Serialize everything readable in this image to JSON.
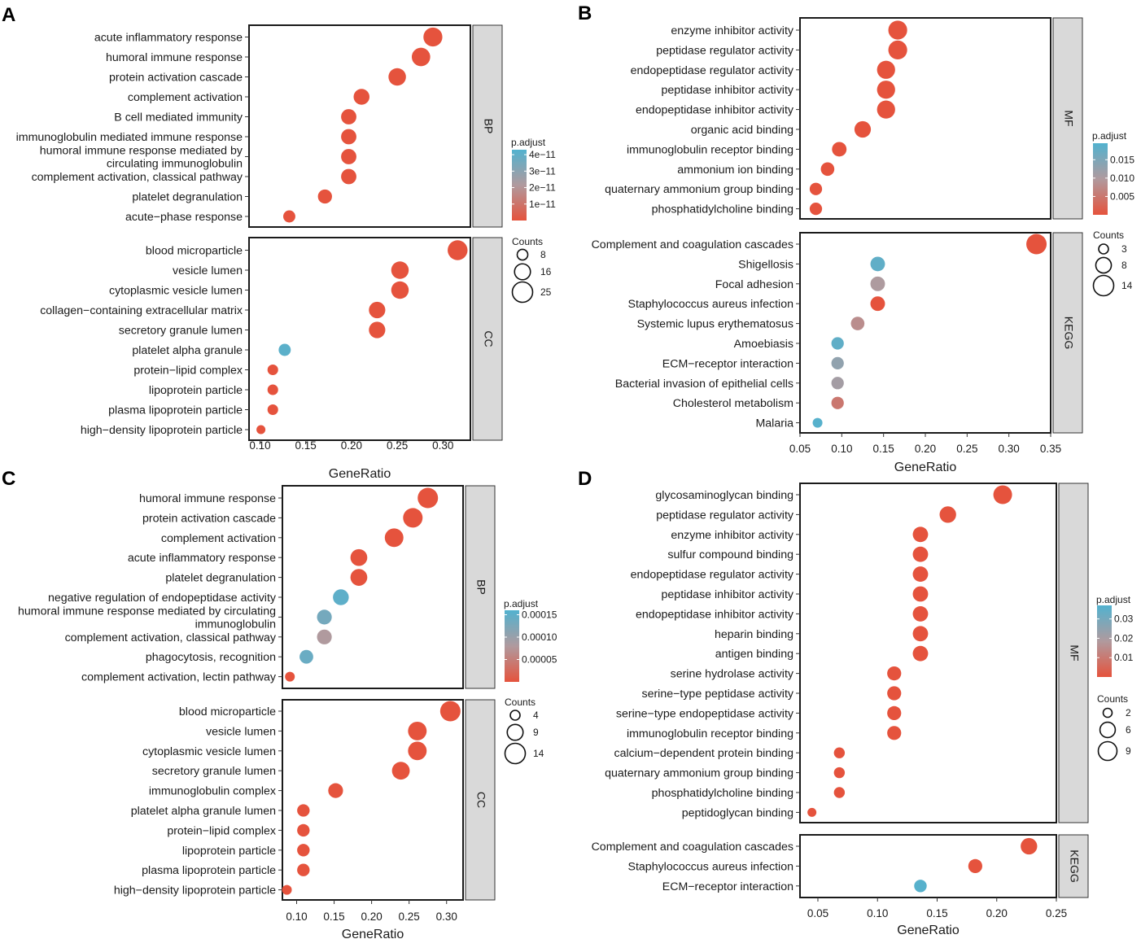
{
  "colors": {
    "high": "#e5533d",
    "low": "#52b2cf",
    "mid": "#b09a9e",
    "strip": "#d9d9d9",
    "frame": "#1a1a1a"
  },
  "chart_data": [
    {
      "panel": "A",
      "type": "scatter",
      "xlabel": "GeneRatio",
      "xticks": [
        0.1,
        0.15,
        0.2,
        0.25,
        0.3
      ],
      "xlim": [
        0.088,
        0.33
      ],
      "facets": [
        {
          "strip": "BP",
          "points": [
            {
              "term": "acute inflammatory response",
              "x": 0.289,
              "count": 22,
              "padj": 0.0
            },
            {
              "term": "humoral immune response",
              "x": 0.276,
              "count": 21,
              "padj": 0.0
            },
            {
              "term": "protein activation cascade",
              "x": 0.25,
              "count": 19,
              "padj": 0.0
            },
            {
              "term": "complement activation",
              "x": 0.211,
              "count": 16,
              "padj": 0.0
            },
            {
              "term": "B cell mediated immunity",
              "x": 0.197,
              "count": 15,
              "padj": 0.0
            },
            {
              "term": "immunoglobulin mediated immune response",
              "x": 0.197,
              "count": 15,
              "padj": 0.0
            },
            {
              "term": [
                "humoral immune response mediated by",
                "circulating immunoglobulin"
              ],
              "x": 0.197,
              "count": 15,
              "padj": 0.0
            },
            {
              "term": "complement activation, classical pathway",
              "x": 0.197,
              "count": 15,
              "padj": 0.0
            },
            {
              "term": "platelet degranulation",
              "x": 0.171,
              "count": 13,
              "padj": 0.0
            },
            {
              "term": "acute−phase response",
              "x": 0.132,
              "count": 10,
              "padj": 0.0
            }
          ]
        },
        {
          "strip": "CC",
          "points": [
            {
              "term": "blood microparticle",
              "x": 0.316,
              "count": 24,
              "padj": 0.0
            },
            {
              "term": "vesicle lumen",
              "x": 0.253,
              "count": 19,
              "padj": 0.0
            },
            {
              "term": "cytoplasmic vesicle lumen",
              "x": 0.253,
              "count": 19,
              "padj": 0.0
            },
            {
              "term": "collagen−containing extracellular matrix",
              "x": 0.228,
              "count": 17,
              "padj": 0.0
            },
            {
              "term": "secretory granule lumen",
              "x": 0.228,
              "count": 17,
              "padj": 0.0
            },
            {
              "term": "platelet alpha granule",
              "x": 0.127,
              "count": 10,
              "padj": 4.1e-11
            },
            {
              "term": "protein−lipid complex",
              "x": 0.114,
              "count": 8,
              "padj": 0.0
            },
            {
              "term": "lipoprotein particle",
              "x": 0.114,
              "count": 8,
              "padj": 0.0
            },
            {
              "term": "plasma lipoprotein particle",
              "x": 0.114,
              "count": 8,
              "padj": 0.0
            },
            {
              "term": "high−density lipoprotein particle",
              "x": 0.101,
              "count": 6,
              "padj": 0.0
            }
          ]
        }
      ],
      "legend": {
        "color_title": "p.adjust",
        "color_ticks": [
          {
            "v": 4e-11,
            "label": "4e−11"
          },
          {
            "v": 3e-11,
            "label": "3e−11"
          },
          {
            "v": 2e-11,
            "label": "2e−11"
          },
          {
            "v": 1e-11,
            "label": "1e−11"
          }
        ],
        "color_range": [
          0,
          4.3e-11
        ],
        "size_title": "Counts",
        "size_breaks": [
          8,
          16,
          25
        ],
        "size_domain": [
          6,
          25
        ]
      }
    },
    {
      "panel": "B",
      "type": "scatter",
      "xlabel": "GeneRatio",
      "xticks": [
        0.05,
        0.1,
        0.15,
        0.2,
        0.25,
        0.3,
        0.35
      ],
      "xlim": [
        0.05,
        0.35
      ],
      "facets": [
        {
          "strip": "MF",
          "points": [
            {
              "term": "enzyme inhibitor activity",
              "x": 0.167,
              "count": 12,
              "padj": 0.0
            },
            {
              "term": "peptidase regulator activity",
              "x": 0.167,
              "count": 12,
              "padj": 0.0
            },
            {
              "term": "endopeptidase regulator activity",
              "x": 0.153,
              "count": 11,
              "padj": 0.0
            },
            {
              "term": "peptidase inhibitor activity",
              "x": 0.153,
              "count": 11,
              "padj": 0.0
            },
            {
              "term": "endopeptidase inhibitor activity",
              "x": 0.153,
              "count": 11,
              "padj": 0.0
            },
            {
              "term": "organic acid binding",
              "x": 0.125,
              "count": 9,
              "padj": 0.0
            },
            {
              "term": "immunoglobulin receptor binding",
              "x": 0.097,
              "count": 7,
              "padj": 0.0
            },
            {
              "term": "ammonium ion binding",
              "x": 0.083,
              "count": 6,
              "padj": 0.0
            },
            {
              "term": "quaternary ammonium group binding",
              "x": 0.069,
              "count": 5,
              "padj": 0.0
            },
            {
              "term": "phosphatidylcholine binding",
              "x": 0.069,
              "count": 5,
              "padj": 0.0
            }
          ]
        },
        {
          "strip": "KEGG",
          "points": [
            {
              "term": "Complement and coagulation cascades",
              "x": 0.333,
              "count": 14,
              "padj": 0.0
            },
            {
              "term": "Shigellosis",
              "x": 0.143,
              "count": 7,
              "padj": 0.018
            },
            {
              "term": "Focal adhesion",
              "x": 0.143,
              "count": 7,
              "padj": 0.01
            },
            {
              "term": "Staphylococcus aureus infection",
              "x": 0.143,
              "count": 7,
              "padj": 0.0
            },
            {
              "term": "Systemic lupus erythematosus",
              "x": 0.119,
              "count": 6,
              "padj": 0.008
            },
            {
              "term": "Amoebiasis",
              "x": 0.095,
              "count": 5,
              "padj": 0.018
            },
            {
              "term": "ECM−receptor interaction",
              "x": 0.095,
              "count": 5,
              "padj": 0.013
            },
            {
              "term": "Bacterial invasion of epithelial cells",
              "x": 0.095,
              "count": 5,
              "padj": 0.011
            },
            {
              "term": "Cholesterol metabolism",
              "x": 0.095,
              "count": 5,
              "padj": 0.005
            },
            {
              "term": "Malaria",
              "x": 0.071,
              "count": 3,
              "padj": 0.019
            }
          ]
        }
      ],
      "legend": {
        "color_title": "p.adjust",
        "color_ticks": [
          {
            "v": 0.015,
            "label": "0.015"
          },
          {
            "v": 0.01,
            "label": "0.010"
          },
          {
            "v": 0.005,
            "label": "0.005"
          }
        ],
        "color_range": [
          0,
          0.0195
        ],
        "size_title": "Counts",
        "size_breaks": [
          3,
          8,
          14
        ],
        "size_domain": [
          3,
          14
        ]
      }
    },
    {
      "panel": "C",
      "type": "scatter",
      "xlabel": "GeneRatio",
      "xticks": [
        0.1,
        0.15,
        0.2,
        0.25,
        0.3
      ],
      "xlim": [
        0.081,
        0.322
      ],
      "facets": [
        {
          "strip": "BP",
          "points": [
            {
              "term": "humoral immune response",
              "x": 0.275,
              "count": 14,
              "padj": 0.0
            },
            {
              "term": "protein activation cascade",
              "x": 0.255,
              "count": 13,
              "padj": 0.0
            },
            {
              "term": "complement activation",
              "x": 0.23,
              "count": 12,
              "padj": 0.0
            },
            {
              "term": "acute inflammatory response",
              "x": 0.183,
              "count": 10,
              "padj": 0.0
            },
            {
              "term": "platelet degranulation",
              "x": 0.183,
              "count": 10,
              "padj": 0.0
            },
            {
              "term": "negative regulation of endopeptidase activity",
              "x": 0.159,
              "count": 9,
              "padj": 0.00015
            },
            {
              "term": [
                "humoral immune response mediated by circulating",
                "immunoglobulin"
              ],
              "x": 0.137,
              "count": 8,
              "padj": 0.00013
            },
            {
              "term": "complement activation, classical pathway",
              "x": 0.137,
              "count": 8,
              "padj": 8e-05
            },
            {
              "term": "phagocytosis, recognition",
              "x": 0.113,
              "count": 7,
              "padj": 0.00014
            },
            {
              "term": "complement activation, lectin pathway",
              "x": 0.091,
              "count": 4,
              "padj": 0.0
            }
          ]
        },
        {
          "strip": "CC",
          "points": [
            {
              "term": "blood microparticle",
              "x": 0.305,
              "count": 14,
              "padj": 0.0
            },
            {
              "term": "vesicle lumen",
              "x": 0.261,
              "count": 12,
              "padj": 0.0
            },
            {
              "term": "cytoplasmic vesicle lumen",
              "x": 0.261,
              "count": 12,
              "padj": 0.0
            },
            {
              "term": "secretory granule lumen",
              "x": 0.239,
              "count": 11,
              "padj": 0.0
            },
            {
              "term": "immunoglobulin complex",
              "x": 0.152,
              "count": 8,
              "padj": 0.0
            },
            {
              "term": "platelet alpha granule lumen",
              "x": 0.109,
              "count": 6,
              "padj": 0.0
            },
            {
              "term": "protein−lipid complex",
              "x": 0.109,
              "count": 6,
              "padj": 0.0
            },
            {
              "term": "lipoprotein particle",
              "x": 0.109,
              "count": 6,
              "padj": 0.0
            },
            {
              "term": "plasma lipoprotein particle",
              "x": 0.109,
              "count": 6,
              "padj": 0.0
            },
            {
              "term": "high−density lipoprotein particle",
              "x": 0.087,
              "count": 4,
              "padj": 0.0
            }
          ]
        }
      ],
      "legend": {
        "color_title": "p.adjust",
        "color_ticks": [
          {
            "v": 0.00015,
            "label": "0.00015"
          },
          {
            "v": 0.0001,
            "label": "0.00010"
          },
          {
            "v": 5e-05,
            "label": "0.00005"
          }
        ],
        "color_range": [
          0,
          0.00016
        ],
        "size_title": "Counts",
        "size_breaks": [
          4,
          9,
          14
        ],
        "size_domain": [
          4,
          14
        ]
      }
    },
    {
      "panel": "D",
      "type": "scatter",
      "xlabel": "GeneRatio",
      "xticks": [
        0.05,
        0.1,
        0.15,
        0.2,
        0.25
      ],
      "xlim": [
        0.035,
        0.25
      ],
      "facets": [
        {
          "strip": "MF",
          "points": [
            {
              "term": "glycosaminoglycan binding",
              "x": 0.205,
              "count": 9,
              "padj": 0.0
            },
            {
              "term": "peptidase regulator activity",
              "x": 0.159,
              "count": 7,
              "padj": 0.0
            },
            {
              "term": "enzyme inhibitor activity",
              "x": 0.136,
              "count": 6,
              "padj": 0.0
            },
            {
              "term": "sulfur compound binding",
              "x": 0.136,
              "count": 6,
              "padj": 0.0
            },
            {
              "term": "endopeptidase regulator activity",
              "x": 0.136,
              "count": 6,
              "padj": 0.0
            },
            {
              "term": "peptidase inhibitor activity",
              "x": 0.136,
              "count": 6,
              "padj": 0.0
            },
            {
              "term": "endopeptidase inhibitor activity",
              "x": 0.136,
              "count": 6,
              "padj": 0.0
            },
            {
              "term": "heparin binding",
              "x": 0.136,
              "count": 6,
              "padj": 0.0
            },
            {
              "term": "antigen binding",
              "x": 0.136,
              "count": 6,
              "padj": 0.0
            },
            {
              "term": "serine hydrolase activity",
              "x": 0.114,
              "count": 5,
              "padj": 0.0
            },
            {
              "term": "serine−type peptidase activity",
              "x": 0.114,
              "count": 5,
              "padj": 0.0
            },
            {
              "term": "serine−type endopeptidase activity",
              "x": 0.114,
              "count": 5,
              "padj": 0.0
            },
            {
              "term": "immunoglobulin receptor binding",
              "x": 0.114,
              "count": 5,
              "padj": 0.0
            },
            {
              "term": "calcium−dependent protein binding",
              "x": 0.068,
              "count": 3,
              "padj": 0.0
            },
            {
              "term": "quaternary ammonium group binding",
              "x": 0.068,
              "count": 3,
              "padj": 0.0
            },
            {
              "term": "phosphatidylcholine binding",
              "x": 0.068,
              "count": 3,
              "padj": 0.0
            },
            {
              "term": "peptidoglycan binding",
              "x": 0.045,
              "count": 2,
              "padj": 0.0
            }
          ]
        },
        {
          "strip": "KEGG",
          "points": [
            {
              "term": "Complement and coagulation cascades",
              "x": 0.227,
              "count": 7,
              "padj": 0.0
            },
            {
              "term": "Staphylococcus aureus infection",
              "x": 0.182,
              "count": 5,
              "padj": 0.0
            },
            {
              "term": "ECM−receptor interaction",
              "x": 0.136,
              "count": 4,
              "padj": 0.036
            }
          ]
        }
      ],
      "legend": {
        "color_title": "p.adjust",
        "color_ticks": [
          {
            "v": 0.03,
            "label": "0.03"
          },
          {
            "v": 0.02,
            "label": "0.02"
          },
          {
            "v": 0.01,
            "label": "0.01"
          }
        ],
        "color_range": [
          0,
          0.037
        ],
        "size_title": "Counts",
        "size_breaks": [
          2,
          6,
          9
        ],
        "size_domain": [
          2,
          9
        ]
      }
    }
  ]
}
